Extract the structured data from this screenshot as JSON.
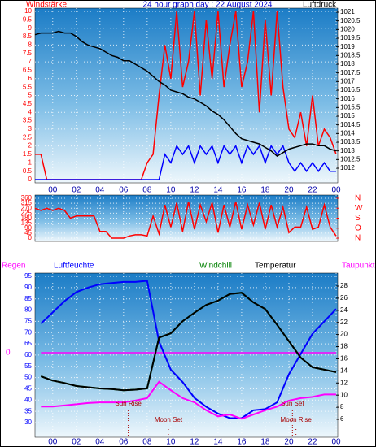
{
  "chart_data": [
    {
      "type": "line",
      "title": "24 hour graph day : 22 August 2024",
      "y_label": "Windstärke",
      "y2_label": "Luftdruck",
      "x": [
        -1.5,
        -1,
        -0.5,
        0,
        0.5,
        1,
        1.5,
        2,
        2.5,
        3,
        3.5,
        4,
        4.5,
        5,
        5.5,
        6,
        6.5,
        7,
        7.5,
        8,
        8.5,
        9,
        9.5,
        10,
        10.5,
        11,
        11.5,
        12,
        12.5,
        13,
        13.5,
        14,
        14.5,
        15,
        15.5,
        16,
        16.5,
        17,
        17.5,
        18,
        18.5,
        19,
        19.5,
        20,
        20.5,
        21,
        21.5,
        22,
        22.5,
        23,
        23.5,
        24
      ],
      "xlim": [
        -1.5,
        24
      ],
      "xticks": [
        {
          "value": 0,
          "label": "00"
        },
        {
          "value": 2,
          "label": "02"
        },
        {
          "value": 4,
          "label": "04"
        },
        {
          "value": 6,
          "label": "06"
        },
        {
          "value": 8,
          "label": "08"
        },
        10,
        12,
        14,
        16,
        18,
        20,
        22,
        {
          "value": 24,
          "label": "00"
        }
      ],
      "ylim": [
        0,
        10
      ],
      "yticks": [
        0,
        0.5,
        1,
        1.5,
        2,
        2.5,
        3,
        3.5,
        4,
        4.5,
        5,
        5.5,
        6,
        6.5,
        7,
        7.5,
        8,
        8.5,
        9,
        9.5,
        10
      ],
      "y2lim": [
        1012,
        1021
      ],
      "y2ticks": [
        1012,
        1012.5,
        1013,
        1013.5,
        1014,
        1014.5,
        1015,
        1015.5,
        1016,
        1016.5,
        1017,
        1017.5,
        1018,
        1018.5,
        1019,
        1019.5,
        1020,
        1020.5,
        1021
      ],
      "grid": true,
      "series": [
        {
          "color": "#ff0000",
          "values": [
            1.5,
            1.5,
            0,
            0,
            0,
            0,
            0,
            0,
            0,
            0,
            0,
            0,
            0,
            0,
            0,
            0,
            0,
            0,
            0,
            1,
            1.5,
            5,
            8,
            6,
            10,
            5.5,
            7,
            10,
            5,
            9.5,
            6,
            10,
            5.5,
            8,
            10,
            5.5,
            7,
            10,
            4,
            9.5,
            5,
            10,
            5.5,
            3,
            2.5,
            4,
            2,
            5,
            2,
            3,
            2.5,
            1.5
          ]
        },
        {
          "color": "#0000ff",
          "values": [
            0,
            0,
            0,
            0,
            0,
            0,
            0,
            0,
            0,
            0,
            0,
            0,
            0,
            0,
            0,
            0,
            0,
            0,
            0,
            0,
            0,
            0,
            1.5,
            1,
            2,
            1.5,
            2,
            1,
            2,
            1.5,
            2,
            1,
            2,
            1.5,
            2,
            1,
            2,
            1.5,
            2,
            1,
            2,
            1.5,
            2,
            1,
            0.5,
            1,
            0.5,
            1,
            0.5,
            1,
            0.5,
            0.5
          ]
        },
        {
          "color": "#000000",
          "axis": "y2",
          "values": [
            1019.7,
            1019.8,
            1019.8,
            1019.8,
            1019.9,
            1019.8,
            1019.8,
            1019.6,
            1019.3,
            1019.1,
            1019,
            1018.9,
            1018.7,
            1018.5,
            1018.4,
            1018.2,
            1018.2,
            1018,
            1017.8,
            1017.6,
            1017.3,
            1017,
            1016.8,
            1016.5,
            1016.4,
            1016.3,
            1016.1,
            1016,
            1015.8,
            1015.6,
            1015.3,
            1015.1,
            1014.8,
            1014.4,
            1014,
            1013.7,
            1013.6,
            1013.5,
            1013.4,
            1013.2,
            1013,
            1012.7,
            1012.9,
            1013.1,
            1013.2,
            1013.3,
            1013.4,
            1013.4,
            1013.3,
            1013.3,
            1013.1,
            1013
          ]
        }
      ]
    },
    {
      "type": "line",
      "x": [
        -1.5,
        -1,
        -0.5,
        0,
        0.5,
        1,
        1.5,
        2,
        2.5,
        3,
        3.5,
        4,
        4.5,
        5,
        5.5,
        6,
        6.5,
        7,
        7.5,
        8,
        8.5,
        9,
        9.5,
        10,
        10.5,
        11,
        11.5,
        12,
        12.5,
        13,
        13.5,
        14,
        14.5,
        15,
        15.5,
        16,
        16.5,
        17,
        17.5,
        18,
        18.5,
        19,
        19.5,
        20,
        20.5,
        21,
        21.5,
        22,
        22.5,
        23,
        23.5,
        24
      ],
      "xlim": [
        -1.5,
        24
      ],
      "ylim": [
        0,
        360
      ],
      "yticks": [
        0,
        45,
        90,
        135,
        180,
        225,
        270,
        315,
        360
      ],
      "y2lim": [
        0,
        360
      ],
      "y2ticks": [
        {
          "value": 360,
          "label": "N"
        },
        {
          "value": 270,
          "label": "W"
        },
        {
          "value": 180,
          "label": "S"
        },
        {
          "value": 90,
          "label": "O"
        },
        {
          "value": 0,
          "label": "N"
        }
      ],
      "grid": true,
      "series": [
        {
          "color": "#ff0000",
          "values": [
            270,
            250,
            270,
            250,
            270,
            250,
            180,
            200,
            200,
            200,
            200,
            60,
            60,
            0,
            0,
            0,
            20,
            30,
            30,
            20,
            200,
            40,
            300,
            100,
            320,
            60,
            330,
            80,
            300,
            150,
            320,
            50,
            300,
            100,
            330,
            80,
            300,
            120,
            320,
            80,
            300,
            100,
            280,
            50,
            100,
            100,
            280,
            80,
            100,
            300,
            100,
            20
          ]
        }
      ]
    },
    {
      "type": "line",
      "x": [
        -1,
        0,
        1,
        2,
        3,
        4,
        5,
        6,
        7,
        8,
        9,
        10,
        11,
        12,
        13,
        14,
        15,
        16,
        17,
        18,
        19,
        20,
        21,
        22,
        23,
        24
      ],
      "xlim": [
        -1.5,
        24
      ],
      "xticks": [
        {
          "value": 0,
          "label": "00"
        },
        {
          "value": 2,
          "label": "02"
        },
        {
          "value": 4,
          "label": "04"
        },
        {
          "value": 6,
          "label": "06"
        },
        {
          "value": 8,
          "label": "08"
        },
        10,
        12,
        14,
        16,
        18,
        20,
        22,
        {
          "value": 24,
          "label": "00"
        }
      ],
      "ylim": [
        30,
        95
      ],
      "yticks": [
        30,
        35,
        40,
        45,
        50,
        55,
        60,
        65,
        70,
        75,
        80,
        85,
        90,
        95
      ],
      "y2lim": [
        6,
        28
      ],
      "y2ticks": [
        6,
        8,
        10,
        12,
        14,
        16,
        18,
        20,
        22,
        24,
        26,
        28
      ],
      "y3ticks": [
        0
      ],
      "grid": true,
      "series": [
        {
          "name": "Regen",
          "color": "#ff00ff",
          "axis": "y3",
          "values": [
            0,
            0,
            0,
            0,
            0,
            0,
            0,
            0,
            0,
            0,
            0,
            0,
            0,
            0,
            0,
            0,
            0,
            0,
            0,
            0,
            0,
            0,
            0,
            0,
            0,
            0
          ]
        },
        {
          "name": "Luftfeuchte",
          "color": "#0000ff",
          "values": [
            74,
            79,
            84,
            88,
            90,
            91.5,
            92,
            92.5,
            92.5,
            93,
            66,
            53.5,
            48,
            41,
            37,
            34,
            32,
            32,
            35.5,
            36,
            39,
            51.5,
            60.5,
            69.5,
            75,
            80.5
          ]
        },
        {
          "name": "Windchill",
          "color": "#008000",
          "axis": "y2",
          "values": [
            13.1,
            12.4,
            12,
            11.5,
            11.3,
            11.1,
            11,
            10.8,
            10.9,
            11.1,
            19.5,
            20.2,
            22.2,
            23.6,
            24.9,
            25.6,
            26.7,
            26.9,
            25.3,
            24.2,
            21.6,
            18.9,
            16.2,
            14.6,
            14.2,
            13.8
          ]
        },
        {
          "name": "Temperatur",
          "color": "#000000",
          "axis": "y2",
          "values": [
            13.1,
            12.4,
            12,
            11.5,
            11.3,
            11.1,
            11,
            10.8,
            10.9,
            11.1,
            19.5,
            20.2,
            22.2,
            23.6,
            24.9,
            25.6,
            26.7,
            26.9,
            25.3,
            24.2,
            21.6,
            18.9,
            16.2,
            14.6,
            14.2,
            13.8
          ]
        },
        {
          "name": "Taupunkt",
          "color": "#ff00ff",
          "axis": "y2",
          "values": [
            8.1,
            8.1,
            8.3,
            8.5,
            8.7,
            8.8,
            8.8,
            8.8,
            9.1,
            9.5,
            12.2,
            10.8,
            9.5,
            8.8,
            7.5,
            6.5,
            6.8,
            6.1,
            6.8,
            7.5,
            8.1,
            9.1,
            9.5,
            9.7,
            10.1,
            10.1
          ]
        }
      ],
      "annotations": [
        {
          "text": "Sun Rise",
          "x": 6.4
        },
        {
          "text": "Moon Set",
          "x": 9.8
        },
        {
          "text": "Sun Set",
          "x": 20.3
        },
        {
          "text": "Moon Rise",
          "x": 20.6
        }
      ]
    }
  ]
}
